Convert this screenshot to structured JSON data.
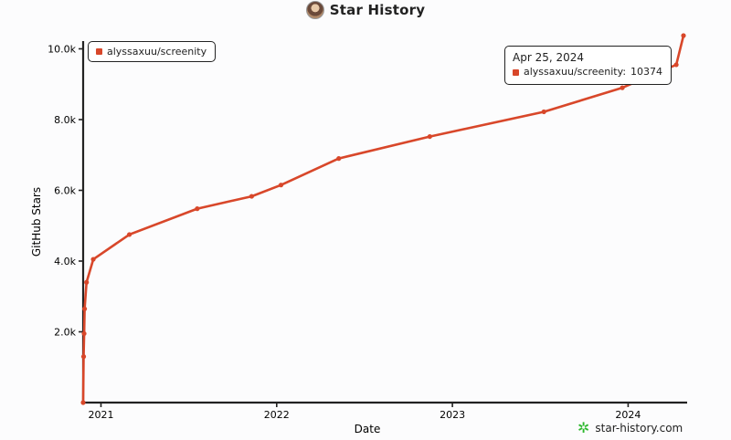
{
  "header": {
    "title": "Star History"
  },
  "legend": {
    "label": "alyssaxuu/screenity"
  },
  "tooltip": {
    "date": "Apr 25, 2024",
    "series_label": "alyssaxuu/screenity:",
    "value": "10374"
  },
  "brand": {
    "label": "star-history.com"
  },
  "colors": {
    "series": "#d8472a",
    "axis": "#222222",
    "brand_icon": "#2eb82e"
  },
  "icons": {
    "avatar": "user-avatar",
    "brand": "star-logo-icon"
  },
  "chart_data": {
    "type": "line",
    "title": "Star History",
    "xlabel": "Date",
    "ylabel": "GitHub Stars",
    "xlim": [
      "2020-11-25",
      "2024-04-25"
    ],
    "ylim": [
      0,
      10374
    ],
    "grid": false,
    "legend_position": "top-left",
    "x_ticks": [
      {
        "value": "2021-01-01",
        "label": "2021"
      },
      {
        "value": "2022-01-01",
        "label": "2022"
      },
      {
        "value": "2023-01-01",
        "label": "2023"
      },
      {
        "value": "2024-01-01",
        "label": "2024"
      }
    ],
    "y_ticks": [
      {
        "value": 2000,
        "label": "2.0k"
      },
      {
        "value": 4000,
        "label": "4.0k"
      },
      {
        "value": 6000,
        "label": "6.0k"
      },
      {
        "value": 8000,
        "label": "8.0k"
      },
      {
        "value": 10000,
        "label": "10.0k"
      }
    ],
    "series": [
      {
        "name": "alyssaxuu/screenity",
        "points": [
          {
            "x": "2020-11-25",
            "y": 0
          },
          {
            "x": "2020-11-26",
            "y": 1300
          },
          {
            "x": "2020-11-27",
            "y": 1950
          },
          {
            "x": "2020-11-28",
            "y": 2650
          },
          {
            "x": "2020-12-02",
            "y": 3400
          },
          {
            "x": "2020-12-16",
            "y": 4050
          },
          {
            "x": "2021-03-01",
            "y": 4750
          },
          {
            "x": "2021-07-20",
            "y": 5480
          },
          {
            "x": "2021-11-10",
            "y": 5830
          },
          {
            "x": "2022-01-10",
            "y": 6150
          },
          {
            "x": "2022-05-10",
            "y": 6900
          },
          {
            "x": "2022-11-15",
            "y": 7520
          },
          {
            "x": "2023-07-10",
            "y": 8220
          },
          {
            "x": "2023-12-20",
            "y": 8900
          },
          {
            "x": "2024-04-10",
            "y": 9550
          },
          {
            "x": "2024-04-25",
            "y": 10374
          }
        ]
      }
    ]
  }
}
